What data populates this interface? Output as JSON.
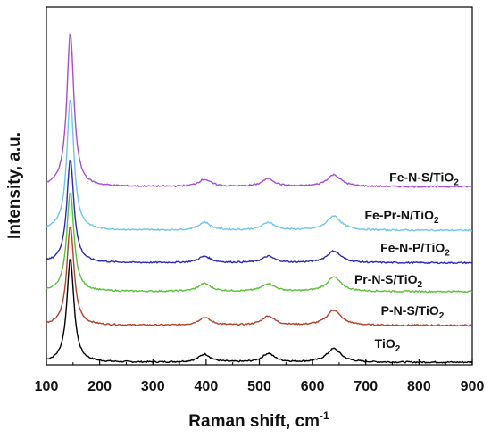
{
  "chart_data": {
    "type": "line",
    "title": "",
    "xlabel": "Raman shift, cm",
    "xlabel_superscript": "-1",
    "ylabel": "Intensity, a.u.",
    "xlim": [
      100,
      900
    ],
    "xticks": [
      100,
      200,
      300,
      400,
      500,
      600,
      700,
      800,
      900
    ],
    "ylim": [
      0,
      1
    ],
    "yticks_shown": false,
    "grid": false,
    "legend": "inline labels right of each curve",
    "peaks": [
      {
        "center": 145,
        "width": 8
      },
      {
        "center": 397,
        "width": 14
      },
      {
        "center": 517,
        "width": 14
      },
      {
        "center": 640,
        "width": 16
      }
    ],
    "series": [
      {
        "name": "TiO",
        "subscript": "2",
        "color": "#000000",
        "baseline": 0.007,
        "amplitudes": [
          0.29,
          0.022,
          0.024,
          0.038
        ]
      },
      {
        "name": "P-N-S/TiO",
        "subscript": "2",
        "color": "#b0432a",
        "baseline": 0.11,
        "amplitudes": [
          0.28,
          0.022,
          0.026,
          0.043
        ]
      },
      {
        "name": "Pr-N-S/TiO",
        "subscript": "2",
        "color": "#5ac13a",
        "baseline": 0.205,
        "amplitudes": [
          0.28,
          0.022,
          0.022,
          0.04
        ]
      },
      {
        "name": "Fe-N-P/TiO",
        "subscript": "2",
        "color": "#2a2ab2",
        "baseline": 0.285,
        "amplitudes": [
          0.29,
          0.018,
          0.018,
          0.033
        ]
      },
      {
        "name": "Fe-Pr-N/TiO",
        "subscript": "2",
        "color": "#6fc6ee",
        "baseline": 0.376,
        "amplitudes": [
          0.37,
          0.022,
          0.022,
          0.04
        ]
      },
      {
        "name": "Fe-N-S/TiO",
        "subscript": "2",
        "color": "#a64fd0",
        "baseline": 0.498,
        "amplitudes": [
          0.43,
          0.02,
          0.022,
          0.033
        ]
      }
    ]
  }
}
